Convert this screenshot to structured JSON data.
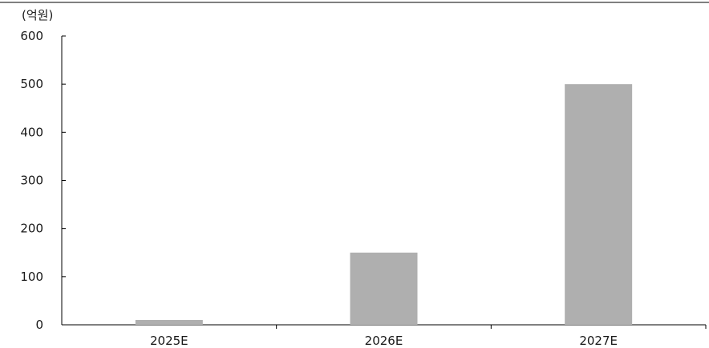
{
  "chart_data": {
    "type": "bar",
    "unit_label": "(억원)",
    "categories": [
      "2025E",
      "2026E",
      "2027E"
    ],
    "values": [
      10,
      150,
      500
    ],
    "ylim": [
      0,
      600
    ],
    "yticks": [
      0,
      100,
      200,
      300,
      400,
      500,
      600
    ],
    "grid": false,
    "legend": "none",
    "bar_color": "#afafaf",
    "axis_color": "#000000"
  }
}
